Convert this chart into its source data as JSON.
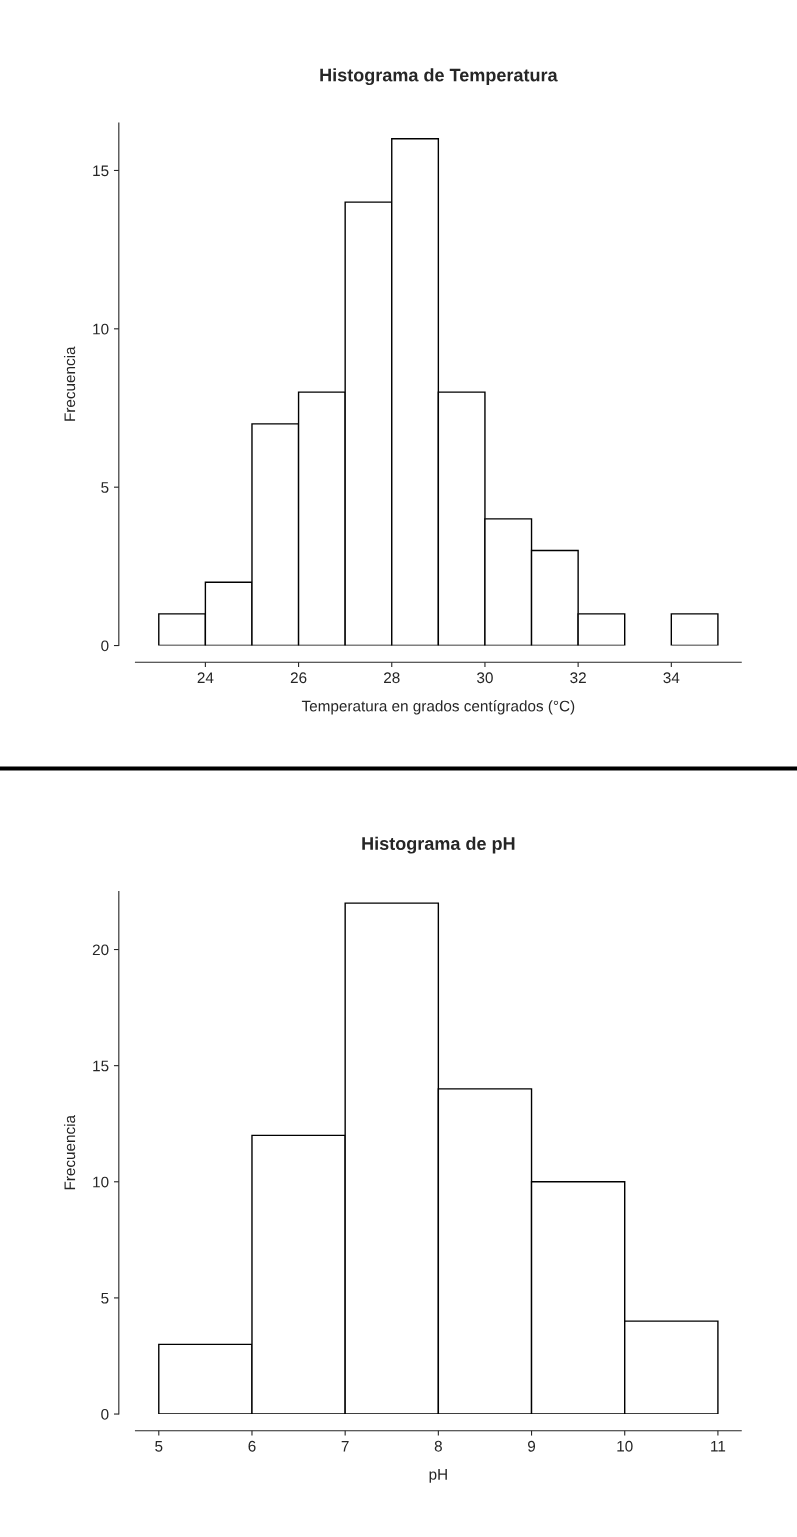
{
  "chart_data": [
    {
      "type": "histogram",
      "title": "Histograma de Temperatura",
      "xlabel": "Temperatura en grados centígrados (°C)",
      "ylabel": "Frecuencia",
      "bins": [
        23,
        24,
        25,
        26,
        27,
        28,
        29,
        30,
        31,
        32,
        33,
        34,
        35
      ],
      "values": [
        1,
        2,
        7,
        8,
        14,
        16,
        8,
        4,
        3,
        1,
        0,
        1
      ],
      "color": "#ffffff",
      "xlim": [
        22.5,
        35.5
      ],
      "ylim": [
        0,
        16.5
      ],
      "xticks": [
        24,
        26,
        28,
        30,
        32,
        34
      ],
      "yticks": [
        0,
        5,
        10,
        15
      ],
      "grid": false
    },
    {
      "type": "histogram",
      "title": "Histograma de pH",
      "xlabel": "pH",
      "ylabel": "Frecuencia",
      "bins": [
        5,
        6,
        7,
        8,
        9,
        10,
        11
      ],
      "values": [
        3,
        12,
        22,
        14,
        10,
        4
      ],
      "color": "#ffffff",
      "xlim": [
        4.75,
        11.25
      ],
      "ylim": [
        0,
        22.5
      ],
      "xticks": [
        5,
        6,
        7,
        8,
        9,
        10,
        11
      ],
      "yticks": [
        0,
        5,
        10,
        15,
        20
      ],
      "grid": false
    }
  ]
}
